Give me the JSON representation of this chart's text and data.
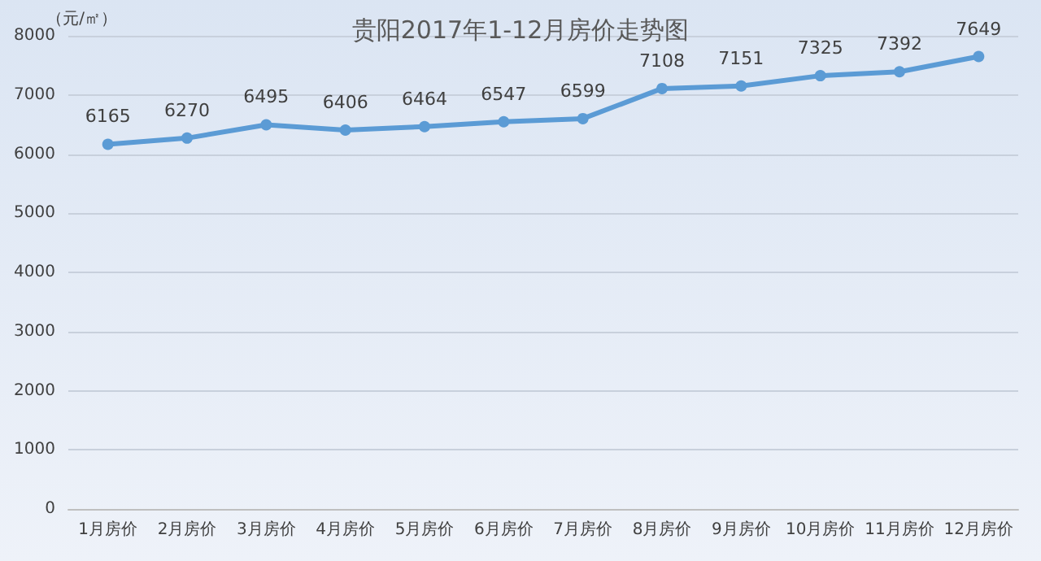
{
  "chart_data": {
    "type": "line",
    "title": "贵阳2017年1-12月房价走势图",
    "ylabel": "（元/㎡）",
    "categories": [
      "1月房价",
      "2月房价",
      "3月房价",
      "4月房价",
      "5月房价",
      "6月房价",
      "7月房价",
      "8月房价",
      "9月房价",
      "10月房价",
      "11月房价",
      "12月房价"
    ],
    "series": [
      {
        "color": "#5b9bd5",
        "values": [
          6165,
          6270,
          6495,
          6406,
          6464,
          6547,
          6599,
          7108,
          7151,
          7325,
          7392,
          7649
        ]
      }
    ],
    "ylim": [
      0,
      8000
    ],
    "yticks": [
      0,
      1000,
      2000,
      3000,
      4000,
      5000,
      6000,
      7000,
      8000
    ],
    "grid": "y",
    "marker": "circle",
    "data_labels": true
  }
}
